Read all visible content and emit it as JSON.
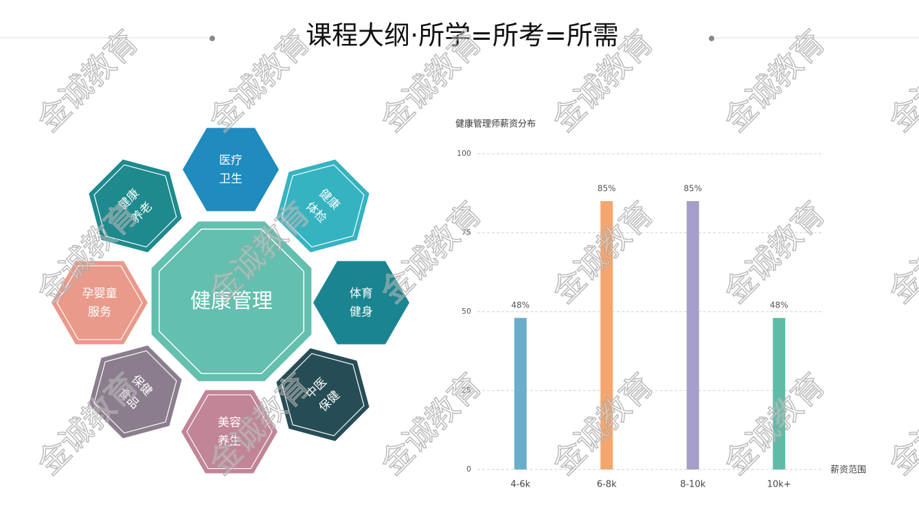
{
  "title": "课程大纲·所学=所考=所需",
  "watermark": "金诚教育",
  "diagram": {
    "center": "健康管理",
    "nodes": [
      {
        "lines": [
          "医疗",
          "卫生"
        ]
      },
      {
        "lines": [
          "健康",
          "体检"
        ]
      },
      {
        "lines": [
          "体育",
          "健身"
        ]
      },
      {
        "lines": [
          "中医",
          "保健"
        ]
      },
      {
        "lines": [
          "美容",
          "养生"
        ]
      },
      {
        "lines": [
          "保健",
          "食品"
        ]
      },
      {
        "lines": [
          "孕婴童",
          "服务"
        ]
      },
      {
        "lines": [
          "健康",
          "养老"
        ]
      }
    ]
  },
  "chart_data": {
    "type": "bar",
    "title": "健康管理师薪资分布",
    "x_label": "薪资范围",
    "categories": [
      "4-6k",
      "6-8k",
      "8-10k",
      "10k+"
    ],
    "values": [
      48,
      85,
      85,
      48
    ],
    "value_labels": [
      "48%",
      "85%",
      "85%",
      "48%"
    ],
    "colors": [
      "#6aaecb",
      "#f5a66f",
      "#a59ec8",
      "#5fbba5"
    ],
    "ylim": [
      0,
      100
    ],
    "yticks": [
      0,
      25,
      50,
      75,
      100
    ],
    "grid": true
  }
}
